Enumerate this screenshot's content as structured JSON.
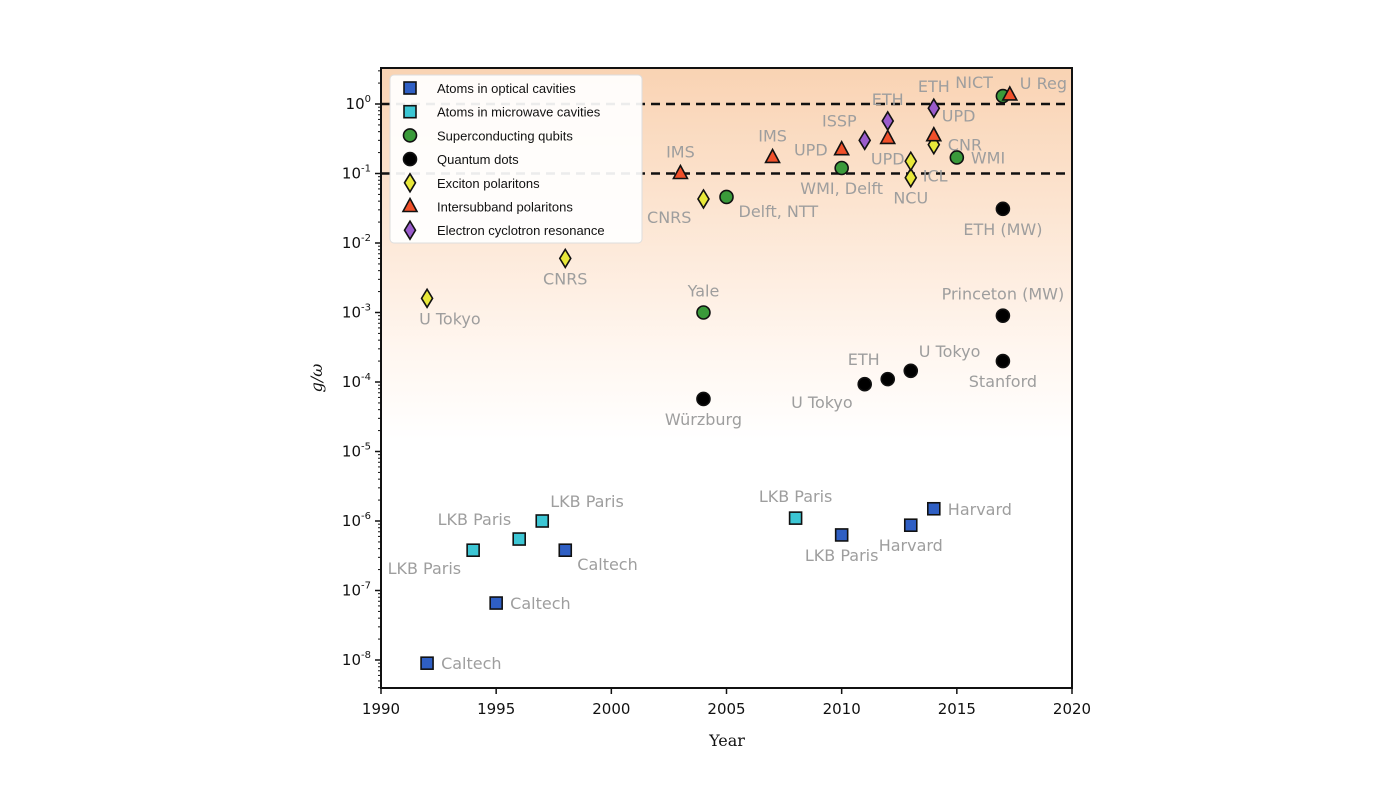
{
  "chart_data": {
    "type": "scatter",
    "title": "",
    "xlabel": "Year",
    "ylabel": "g/ω",
    "xlim": [
      1990,
      2020
    ],
    "ylim_log10": [
      -8.5,
      0.52
    ],
    "yscale": "log",
    "x_ticks": [
      "1990",
      "1995",
      "2000",
      "2005",
      "2010",
      "2015",
      "2020"
    ],
    "y_ticks": [
      {
        "base": "10",
        "exp": "0"
      },
      {
        "base": "10",
        "exp": "-1"
      },
      {
        "base": "10",
        "exp": "-2"
      },
      {
        "base": "10",
        "exp": "-3"
      },
      {
        "base": "10",
        "exp": "-4"
      },
      {
        "base": "10",
        "exp": "-5"
      },
      {
        "base": "10",
        "exp": "-6"
      },
      {
        "base": "10",
        "exp": "-7"
      },
      {
        "base": "10",
        "exp": "-8"
      }
    ],
    "reference_lines": [
      1,
      0.1
    ],
    "legend_position": "top-left",
    "series": [
      {
        "name": "Atoms in optical cavities",
        "marker": "square",
        "color": "#2f5fc4",
        "points": [
          {
            "x": 1992,
            "y": 9e-09,
            "label": "Caltech",
            "pos": "right"
          },
          {
            "x": 1995,
            "y": 6.6e-08,
            "label": "Caltech",
            "pos": "right"
          },
          {
            "x": 1998,
            "y": 3.8e-07,
            "label": "Caltech",
            "pos": "right-below"
          },
          {
            "x": 2010,
            "y": 6.3e-07,
            "label": "LKB Paris",
            "pos": "below"
          },
          {
            "x": 2013,
            "y": 8.7e-07,
            "label": "Harvard",
            "pos": "below"
          },
          {
            "x": 2014,
            "y": 1.5e-06,
            "label": "Harvard",
            "pos": "right"
          }
        ]
      },
      {
        "name": "Atoms in microwave cavities",
        "marker": "square",
        "color": "#3cc6d4",
        "points": [
          {
            "x": 1994,
            "y": 3.8e-07,
            "label": "LKB Paris",
            "pos": "below-left"
          },
          {
            "x": 1996,
            "y": 5.5e-07,
            "label": "LKB Paris",
            "pos": "above-left"
          },
          {
            "x": 1997,
            "y": 1e-06,
            "label": "LKB Paris",
            "pos": "above-right"
          },
          {
            "x": 2008,
            "y": 1.1e-06,
            "label": "LKB Paris",
            "pos": "above"
          }
        ]
      },
      {
        "name": "Superconducting qubits",
        "marker": "circle",
        "color": "#3a9a3a",
        "points": [
          {
            "x": 2004,
            "y": 0.001,
            "label": "Yale",
            "pos": "above"
          },
          {
            "x": 2005,
            "y": 0.046,
            "label": "Delft, NTT",
            "pos": "right-below"
          },
          {
            "x": 2010,
            "y": 0.12,
            "label": "WMI, Delft",
            "pos": "below"
          },
          {
            "x": 2015,
            "y": 0.17,
            "label": "WMI",
            "pos": "right"
          },
          {
            "x": 2017,
            "y": 1.3,
            "label": "NICT",
            "pos": "left-above"
          }
        ]
      },
      {
        "name": "Quantum dots",
        "marker": "circle",
        "color": "#000000",
        "points": [
          {
            "x": 2004,
            "y": 5.7e-05,
            "label": "Würzburg",
            "pos": "below"
          },
          {
            "x": 2011,
            "y": 9.3e-05,
            "label": "U Tokyo",
            "pos": "below-left"
          },
          {
            "x": 2012,
            "y": 0.00011,
            "label": "ETH",
            "pos": "above-left"
          },
          {
            "x": 2013,
            "y": 0.000145,
            "label": "U Tokyo",
            "pos": "above-right"
          },
          {
            "x": 2017,
            "y": 0.0002,
            "label": "Stanford",
            "pos": "below"
          },
          {
            "x": 2017,
            "y": 0.0009,
            "label": "Princeton (MW)",
            "pos": "above"
          },
          {
            "x": 2017,
            "y": 0.031,
            "label": "ETH (MW)",
            "pos": "below"
          }
        ]
      },
      {
        "name": "Exciton polaritons",
        "marker": "diamond",
        "color": "#e8e83a",
        "points": [
          {
            "x": 1992,
            "y": 0.0016,
            "label": "U Tokyo",
            "pos": "below-right"
          },
          {
            "x": 1998,
            "y": 0.006,
            "label": "CNRS",
            "pos": "below"
          },
          {
            "x": 2004,
            "y": 0.043,
            "label": "CNRS",
            "pos": "below-left"
          },
          {
            "x": 2013,
            "y": 0.087,
            "label": "NCU",
            "pos": "below"
          },
          {
            "x": 2013,
            "y": 0.15,
            "label": "ICL",
            "pos": "right-below"
          },
          {
            "x": 2014,
            "y": 0.26,
            "label": "CNR",
            "pos": "right"
          }
        ]
      },
      {
        "name": "Intersubband polaritons",
        "marker": "triangle",
        "color": "#f0502a",
        "points": [
          {
            "x": 2003,
            "y": 0.1,
            "label": "IMS",
            "pos": "above"
          },
          {
            "x": 2007,
            "y": 0.17,
            "label": "IMS",
            "pos": "above"
          },
          {
            "x": 2010,
            "y": 0.22,
            "label": "UPD",
            "pos": "left"
          },
          {
            "x": 2012,
            "y": 0.32,
            "label": "UPD",
            "pos": "below"
          },
          {
            "x": 2014,
            "y": 0.35,
            "label": "UPD",
            "pos": "above-right"
          },
          {
            "x": 2017.3,
            "y": 1.35,
            "label": "U Reg",
            "pos": "right-above"
          }
        ]
      },
      {
        "name": "Electron cyclotron resonance",
        "marker": "diamond",
        "color": "#9a5ccc",
        "points": [
          {
            "x": 2011,
            "y": 0.3,
            "label": "ISSP",
            "pos": "above-left"
          },
          {
            "x": 2012,
            "y": 0.57,
            "label": "ETH",
            "pos": "above"
          },
          {
            "x": 2014,
            "y": 0.87,
            "label": "ETH",
            "pos": "above"
          }
        ]
      }
    ]
  }
}
